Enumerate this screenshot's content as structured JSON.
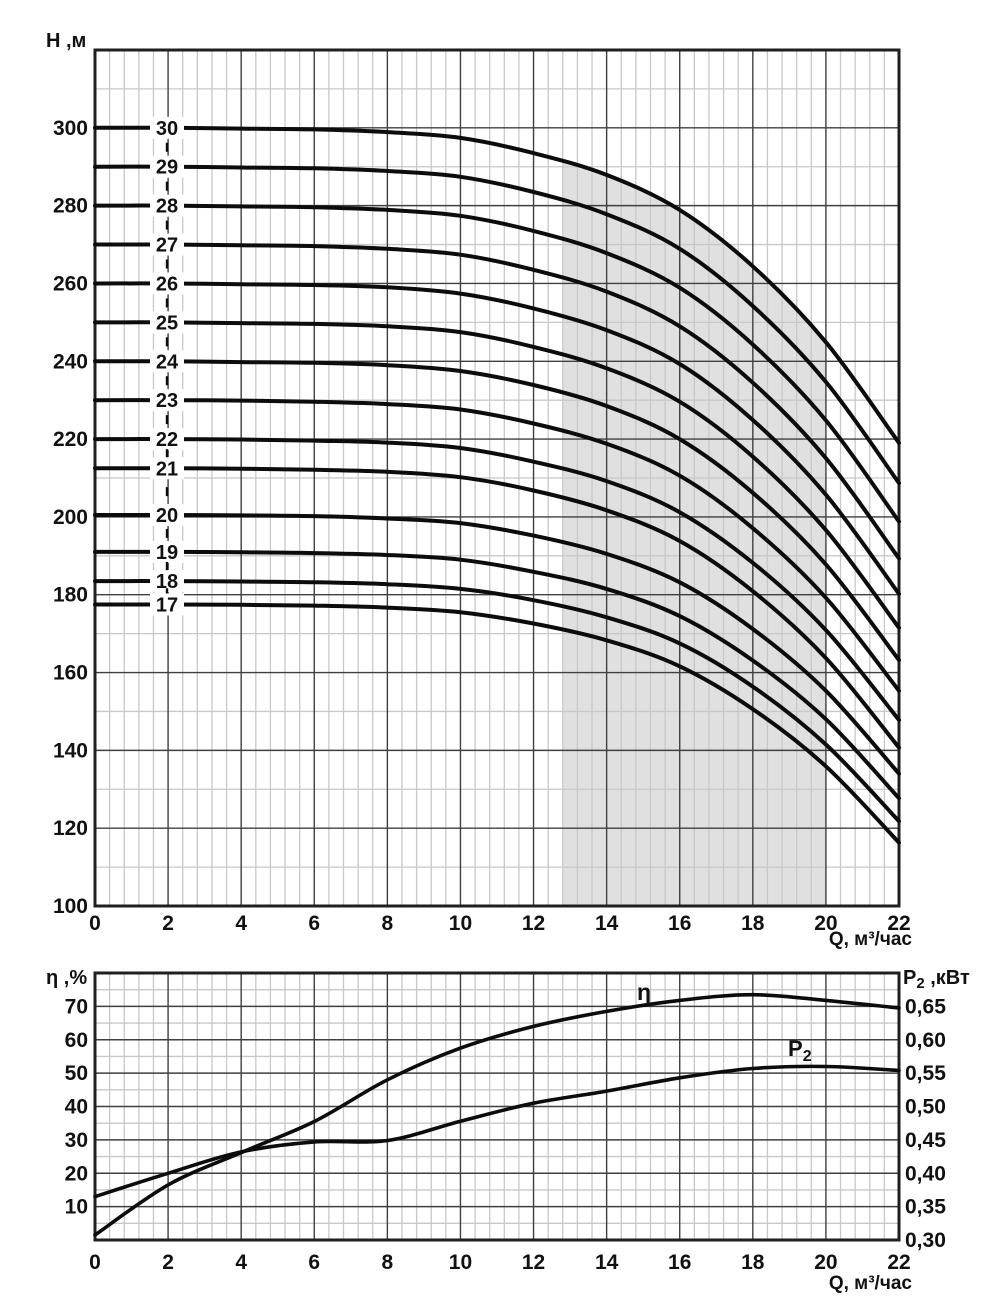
{
  "colors": {
    "background": "#ffffff",
    "frame": "#1f1f1f",
    "grid_major": "#3f3f3f",
    "grid_minor": "#c8c8c8",
    "curve": "#0c0c0c",
    "shaded_region": "#e0e0e0",
    "text": "#111111"
  },
  "chart_data": [
    {
      "id": "head-flow-curves",
      "type": "line",
      "ylabel": "H ,м",
      "xlabel": "Q, м³/час",
      "x_range": [
        0,
        22
      ],
      "y_range": [
        100,
        320
      ],
      "x_major_step": 2,
      "x_minor_step": 0.4,
      "y_major_step": 20,
      "y_minor_step": 10,
      "x_ticks": [
        0,
        2,
        4,
        6,
        8,
        10,
        12,
        14,
        16,
        18,
        20,
        22
      ],
      "y_ticks": [
        100,
        120,
        140,
        160,
        180,
        200,
        220,
        240,
        260,
        280,
        300
      ],
      "q": [
        0,
        2,
        4,
        6,
        8,
        10,
        12,
        14,
        16,
        18,
        20,
        22
      ],
      "series": [
        {
          "name": "30",
          "values": [
            300,
            300,
            299.8,
            299.6,
            298.9,
            297.4,
            293.5,
            287.9,
            278.9,
            264.4,
            244.9,
            219.0
          ]
        },
        {
          "name": "29",
          "values": [
            290,
            290,
            289.8,
            289.6,
            288.9,
            287.4,
            283.5,
            277.8,
            268.9,
            254.2,
            234.7,
            208.7
          ]
        },
        {
          "name": "28",
          "values": [
            280,
            280,
            279.8,
            279.6,
            278.9,
            277.4,
            273.5,
            267.8,
            258.9,
            244.3,
            224.8,
            198.8
          ]
        },
        {
          "name": "27",
          "values": [
            270,
            270,
            269.8,
            269.6,
            268.9,
            267.4,
            263.5,
            257.9,
            249.0,
            234.5,
            215.1,
            189.3
          ]
        },
        {
          "name": "26",
          "values": [
            260,
            260,
            259.8,
            259.6,
            259.0,
            257.4,
            253.6,
            248.0,
            239.3,
            224.9,
            205.7,
            180.2
          ]
        },
        {
          "name": "25",
          "values": [
            250,
            250,
            249.8,
            249.6,
            249.0,
            247.5,
            243.7,
            238.2,
            229.6,
            215.5,
            196.6,
            171.5
          ]
        },
        {
          "name": "24",
          "values": [
            240,
            240,
            239.8,
            239.6,
            239.0,
            237.5,
            233.9,
            228.5,
            220.0,
            206.2,
            187.8,
            163.2
          ]
        },
        {
          "name": "23",
          "values": [
            230,
            230,
            229.9,
            229.6,
            229.0,
            227.6,
            224.0,
            218.8,
            210.6,
            197.1,
            179.2,
            155.3
          ]
        },
        {
          "name": "22",
          "values": [
            220,
            220,
            219.9,
            219.6,
            219.1,
            217.7,
            214.2,
            209.2,
            201.2,
            188.2,
            170.9,
            147.8
          ]
        },
        {
          "name": "21",
          "values": [
            212.5,
            212.5,
            212.4,
            212.1,
            211.6,
            210.2,
            206.8,
            201.7,
            193.8,
            180.9,
            163.7,
            140.7
          ]
        },
        {
          "name": "20",
          "values": [
            200.5,
            200.5,
            200.4,
            200.2,
            199.6,
            198.4,
            195.2,
            190.5,
            183.2,
            171.2,
            155.3,
            134.0
          ]
        },
        {
          "name": "19",
          "values": [
            191,
            191,
            190.9,
            190.7,
            190.2,
            189.0,
            185.9,
            181.5,
            174.5,
            163.1,
            148.0,
            127.7
          ]
        },
        {
          "name": "18",
          "values": [
            183.5,
            183.5,
            183.4,
            183.2,
            182.7,
            181.5,
            178.6,
            174.2,
            167.5,
            156.4,
            141.5,
            121.8
          ]
        },
        {
          "name": "17",
          "values": [
            177.5,
            177.5,
            177.4,
            177.2,
            176.7,
            175.5,
            172.6,
            168.3,
            161.6,
            150.6,
            135.9,
            116.3
          ]
        }
      ],
      "shaded_region": {
        "q_min": 12.8,
        "q_max": 20,
        "bottom": 100
      }
    },
    {
      "id": "efficiency-power",
      "type": "line",
      "ylabel_left": "η ,%",
      "ylabel_right": {
        "base": "P",
        "sub": "2",
        "rest": " ,кВт"
      },
      "xlabel": "Q, м³/час",
      "x_range": [
        0,
        22
      ],
      "y_left_range": [
        0,
        80
      ],
      "y_right_range": [
        0.3,
        0.7
      ],
      "x_major_step": 2,
      "x_minor_step": 0.4,
      "y_left_major_step": 10,
      "y_left_minor_step": 5,
      "x_ticks": [
        0,
        2,
        4,
        6,
        8,
        10,
        12,
        14,
        16,
        18,
        20,
        22
      ],
      "y_left_ticks": [
        10,
        20,
        30,
        40,
        50,
        60,
        70
      ],
      "y_right_ticks": [
        0.3,
        0.35,
        0.4,
        0.45,
        0.5,
        0.55,
        0.6,
        0.65
      ],
      "eta_series": {
        "label": "η",
        "q": [
          0,
          2,
          4,
          6,
          8,
          10,
          12,
          14,
          16,
          18,
          20,
          22
        ],
        "percent": [
          1.5,
          16.5,
          26.2,
          35.5,
          48.0,
          57.5,
          64.0,
          68.5,
          71.8,
          73.5,
          71.8,
          69.5
        ]
      },
      "p2_series": {
        "label": {
          "base": "P",
          "sub": "2"
        },
        "q": [
          0,
          2,
          4,
          6,
          8,
          10,
          12,
          14,
          16,
          18,
          20,
          22
        ],
        "kw": [
          0.365,
          0.4,
          0.432,
          0.447,
          0.449,
          0.478,
          0.505,
          0.523,
          0.543,
          0.557,
          0.56,
          0.554
        ]
      }
    }
  ]
}
